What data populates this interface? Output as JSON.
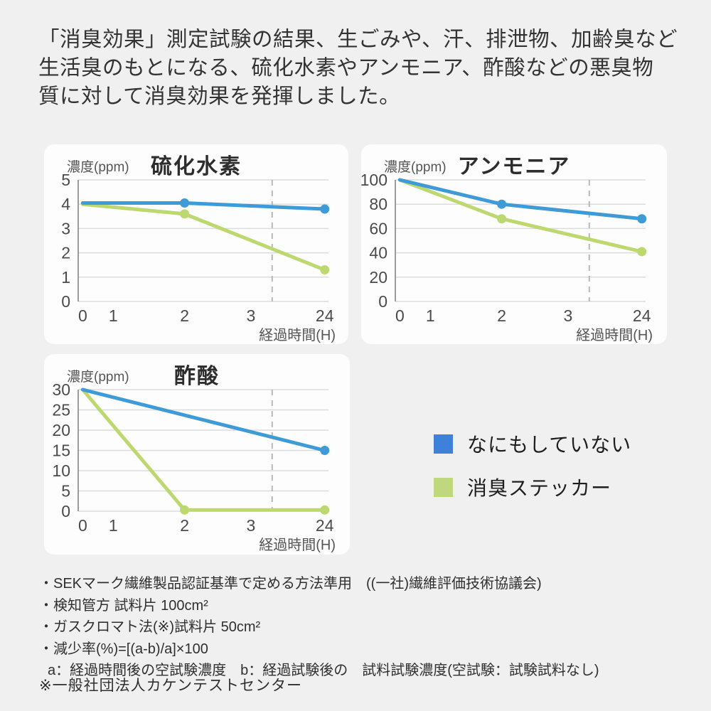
{
  "header": {
    "lines": [
      "「消臭効果」測定試験の結果、生ごみや、汗、排泄物、加齢臭など",
      "生活臭のもとになる、硫化水素やアンモニア、酢酸などの悪臭物",
      "質に対して消臭効果を発揮しました。"
    ]
  },
  "colors": {
    "blue": "#3f9ad8",
    "green": "#bdd86f",
    "legend_blue": "#3d82d8",
    "legend_green": "#c0d87d",
    "grid": "#dcdcdc",
    "axis": "#9b9b9b",
    "dashed": "#b8b8b8",
    "tick_text": "#4b4b4b",
    "axis_label_text": "#555555",
    "card_bg": "#fdfdfd",
    "page_bg": "#f0f0f1"
  },
  "legend": {
    "items": [
      {
        "label": "なにもしていない",
        "color_key": "legend_blue"
      },
      {
        "label": "消臭ステッカー",
        "color_key": "legend_green"
      }
    ]
  },
  "footnotes": {
    "lines": [
      "・SEKマーク繊維製品認証基準で定める方法準用　((一社)繊維評価技術協議会)",
      "・検知管方 試料片 100cm²",
      "・ガスクロマト法(※)試料片 50cm²",
      "・減少率(%)=[(a-b)/a]×100",
      "a：経過時間後の空試験濃度　b：経過試験後の　試料試験濃度(空試験：試験試料なし)"
    ],
    "source": "※一般社団法人カケンテストセンター"
  },
  "chart_data": [
    {
      "type": "line",
      "title": "硫化水素",
      "y_unit_label": "濃度(ppm)",
      "x_axis_label": "経過時間(H)",
      "xlabel": "経過時間(H)",
      "ylabel": "濃度(ppm)",
      "x_ticks": [
        "0",
        "1",
        "2",
        "3",
        "24"
      ],
      "x_positions": {
        "0": 0.018,
        "1": 0.14,
        "2": 0.425,
        "3": 0.69,
        "24": 0.985
      },
      "y_ticks": [
        5,
        4,
        3,
        2,
        1,
        0
      ],
      "ylim": [
        0,
        5
      ],
      "grid": true,
      "dashed_line_x_fraction": 0.775,
      "legend_position": "outside-right",
      "series": [
        {
          "name": "なにもしていない",
          "color_key": "blue",
          "points": [
            {
              "x": "0",
              "y": 4.05,
              "marker": false
            },
            {
              "x": "2",
              "y": 4.05,
              "marker": true
            },
            {
              "x": "24",
              "y": 3.8,
              "marker": true
            }
          ]
        },
        {
          "name": "消臭ステッカー",
          "color_key": "green",
          "points": [
            {
              "x": "0",
              "y": 4.0,
              "marker": false
            },
            {
              "x": "2",
              "y": 3.6,
              "marker": true
            },
            {
              "x": "24",
              "y": 1.3,
              "marker": true
            }
          ]
        }
      ]
    },
    {
      "type": "line",
      "title": "アンモニア",
      "y_unit_label": "濃度(ppm)",
      "x_axis_label": "経過時間(H)",
      "xlabel": "経過時間(H)",
      "ylabel": "濃度(ppm)",
      "x_ticks": [
        "0",
        "1",
        "2",
        "3",
        "24"
      ],
      "x_positions": {
        "0": 0.018,
        "1": 0.14,
        "2": 0.425,
        "3": 0.69,
        "24": 0.985
      },
      "y_ticks": [
        100,
        80,
        60,
        40,
        20,
        0
      ],
      "ylim": [
        0,
        100
      ],
      "grid": true,
      "dashed_line_x_fraction": 0.775,
      "legend_position": "outside-right",
      "series": [
        {
          "name": "なにもしていない",
          "color_key": "blue",
          "points": [
            {
              "x": "0",
              "y": 100,
              "marker": false
            },
            {
              "x": "2",
              "y": 80,
              "marker": true
            },
            {
              "x": "24",
              "y": 68,
              "marker": true
            }
          ]
        },
        {
          "name": "消臭ステッカー",
          "color_key": "green",
          "points": [
            {
              "x": "0",
              "y": 100,
              "marker": false
            },
            {
              "x": "2",
              "y": 68,
              "marker": true
            },
            {
              "x": "24",
              "y": 41,
              "marker": true
            }
          ]
        }
      ]
    },
    {
      "type": "line",
      "title": "酢酸",
      "y_unit_label": "濃度(ppm)",
      "x_axis_label": "経過時間(H)",
      "xlabel": "経過時間(H)",
      "ylabel": "濃度(ppm)",
      "x_ticks": [
        "0",
        "1",
        "2",
        "3",
        "24"
      ],
      "x_positions": {
        "0": 0.018,
        "1": 0.14,
        "2": 0.425,
        "3": 0.69,
        "24": 0.985
      },
      "y_ticks": [
        30,
        25,
        20,
        15,
        10,
        5,
        0
      ],
      "ylim": [
        0,
        30
      ],
      "grid": true,
      "dashed_line_x_fraction": 0.775,
      "legend_position": "outside-right",
      "series": [
        {
          "name": "なにもしていない",
          "color_key": "blue",
          "points": [
            {
              "x": "0",
              "y": 30,
              "marker": false
            },
            {
              "x": "24",
              "y": 15,
              "marker": true
            }
          ]
        },
        {
          "name": "消臭ステッカー",
          "color_key": "green",
          "points": [
            {
              "x": "0",
              "y": 30,
              "marker": false
            },
            {
              "x": "2",
              "y": 0.3,
              "marker": true
            },
            {
              "x": "24",
              "y": 0.3,
              "marker": true
            }
          ]
        }
      ]
    }
  ]
}
